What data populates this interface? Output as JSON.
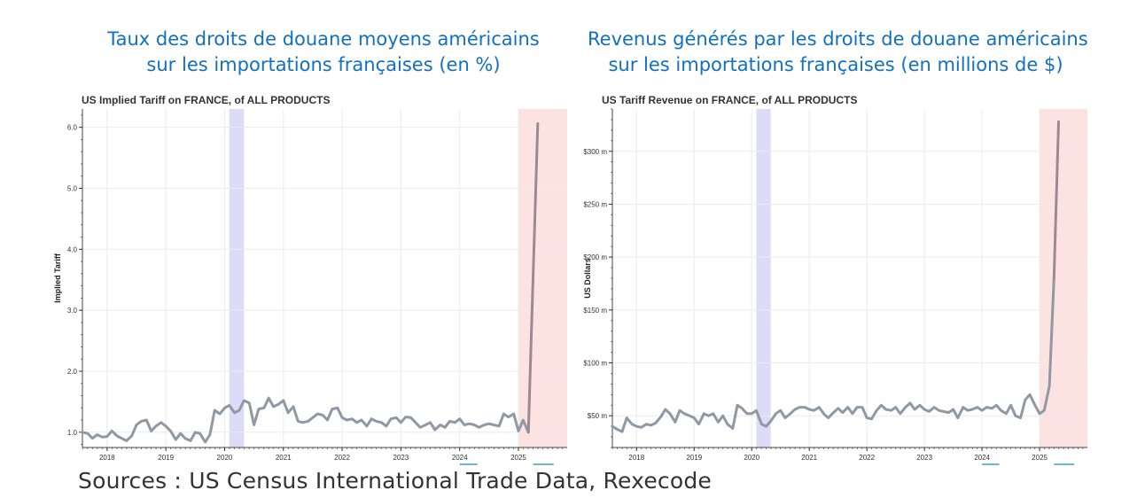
{
  "headings": {
    "left": [
      "Taux des droits de douane moyens américains",
      "sur les importations françaises (en %)"
    ],
    "right": [
      "Revenus générés par les droits de douane américains",
      "sur les importations françaises (en millions de $)"
    ]
  },
  "sources": "Sources : US Census  International Trade Data, Rexecode",
  "colors": {
    "heading": "#1270c0",
    "line": "#8f99a4",
    "line_recent": "#9a8a92",
    "shade_covid": "#dcdcf8",
    "shade_2025": "#fde2e2"
  },
  "chart_data": [
    {
      "type": "line",
      "title": "US Implied Tariff on FRANCE, of ALL PRODUCTS",
      "ylabel": "Implied Tariff",
      "xlim": [
        2017.58,
        2025.83
      ],
      "ylim": [
        0.75,
        6.3
      ],
      "yticks": [
        1.0,
        2.0,
        3.0,
        4.0,
        5.0,
        6.0
      ],
      "ytick_labels": [
        "1.0",
        "2.0",
        "3.0",
        "4.0",
        "5.0",
        "6.0"
      ],
      "xticks": [
        2018,
        2019,
        2020,
        2021,
        2022,
        2023,
        2024,
        2025
      ],
      "xtick_labels": [
        "2018",
        "2019",
        "2020",
        "2021",
        "2022",
        "2023",
        "2024",
        "2025"
      ],
      "shaded_regions": [
        [
          2020.08,
          2020.33
        ],
        [
          2025.0,
          2025.83
        ]
      ],
      "grid": true,
      "x": [
        2017.58,
        2017.67,
        2017.75,
        2017.83,
        2017.92,
        2018.0,
        2018.08,
        2018.17,
        2018.25,
        2018.33,
        2018.42,
        2018.5,
        2018.58,
        2018.67,
        2018.75,
        2018.83,
        2018.92,
        2019.0,
        2019.08,
        2019.17,
        2019.25,
        2019.33,
        2019.42,
        2019.5,
        2019.58,
        2019.67,
        2019.75,
        2019.83,
        2019.92,
        2020.0,
        2020.08,
        2020.17,
        2020.25,
        2020.33,
        2020.42,
        2020.5,
        2020.58,
        2020.67,
        2020.75,
        2020.83,
        2020.92,
        2021.0,
        2021.08,
        2021.17,
        2021.25,
        2021.33,
        2021.42,
        2021.5,
        2021.58,
        2021.67,
        2021.75,
        2021.83,
        2021.92,
        2022.0,
        2022.08,
        2022.17,
        2022.25,
        2022.33,
        2022.42,
        2022.5,
        2022.58,
        2022.67,
        2022.75,
        2022.83,
        2022.92,
        2023.0,
        2023.08,
        2023.17,
        2023.25,
        2023.33,
        2023.42,
        2023.5,
        2023.58,
        2023.67,
        2023.75,
        2023.83,
        2023.92,
        2024.0,
        2024.08,
        2024.17,
        2024.25,
        2024.33,
        2024.42,
        2024.5,
        2024.58,
        2024.67,
        2024.75,
        2024.83,
        2024.92,
        2025.0,
        2025.08,
        2025.17,
        2025.33
      ],
      "y": [
        1.0,
        0.98,
        0.9,
        0.96,
        0.92,
        0.93,
        1.02,
        0.94,
        0.9,
        0.86,
        0.94,
        1.12,
        1.18,
        1.2,
        1.02,
        1.1,
        1.16,
        1.1,
        1.02,
        0.88,
        0.98,
        0.9,
        0.86,
        1.0,
        0.98,
        0.84,
        0.96,
        1.36,
        1.3,
        1.4,
        1.44,
        1.32,
        1.36,
        1.52,
        1.48,
        1.12,
        1.38,
        1.4,
        1.56,
        1.42,
        1.46,
        1.52,
        1.32,
        1.42,
        1.18,
        1.16,
        1.18,
        1.24,
        1.3,
        1.28,
        1.2,
        1.38,
        1.4,
        1.24,
        1.2,
        1.22,
        1.16,
        1.2,
        1.1,
        1.22,
        1.18,
        1.16,
        1.1,
        1.22,
        1.24,
        1.16,
        1.25,
        1.24,
        1.16,
        1.08,
        1.12,
        1.16,
        1.04,
        1.12,
        1.08,
        1.18,
        1.16,
        1.22,
        1.12,
        1.14,
        1.12,
        1.08,
        1.12,
        1.14,
        1.12,
        1.1,
        1.3,
        1.25,
        1.3,
        1.02,
        1.2,
        1.0,
        6.06
      ]
    },
    {
      "type": "line",
      "title": "US Tariff Revenue on FRANCE, of ALL PRODUCTS",
      "ylabel": "US Dollars",
      "xlim": [
        2017.58,
        2025.83
      ],
      "ylim": [
        20,
        340
      ],
      "yticks": [
        50,
        100,
        150,
        200,
        250,
        300
      ],
      "ytick_labels": [
        "$50 m",
        "$100 m",
        "$150 m",
        "$200 m",
        "$250 m",
        "$300 m"
      ],
      "xticks": [
        2018,
        2019,
        2020,
        2021,
        2022,
        2023,
        2024,
        2025
      ],
      "xtick_labels": [
        "2018",
        "2019",
        "2020",
        "2021",
        "2022",
        "2023",
        "2024",
        "2025"
      ],
      "shaded_regions": [
        [
          2020.08,
          2020.33
        ],
        [
          2025.0,
          2025.83
        ]
      ],
      "grid": true,
      "x": [
        2017.58,
        2017.67,
        2017.75,
        2017.83,
        2017.92,
        2018.0,
        2018.08,
        2018.17,
        2018.25,
        2018.33,
        2018.42,
        2018.5,
        2018.58,
        2018.67,
        2018.75,
        2018.83,
        2018.92,
        2019.0,
        2019.08,
        2019.17,
        2019.25,
        2019.33,
        2019.42,
        2019.5,
        2019.58,
        2019.67,
        2019.75,
        2019.83,
        2019.92,
        2020.0,
        2020.08,
        2020.17,
        2020.25,
        2020.33,
        2020.42,
        2020.5,
        2020.58,
        2020.67,
        2020.75,
        2020.83,
        2020.92,
        2021.0,
        2021.08,
        2021.17,
        2021.25,
        2021.33,
        2021.42,
        2021.5,
        2021.58,
        2021.67,
        2021.75,
        2021.83,
        2021.92,
        2022.0,
        2022.08,
        2022.17,
        2022.25,
        2022.33,
        2022.42,
        2022.5,
        2022.58,
        2022.67,
        2022.75,
        2022.83,
        2022.92,
        2023.0,
        2023.08,
        2023.17,
        2023.25,
        2023.33,
        2023.42,
        2023.5,
        2023.58,
        2023.67,
        2023.75,
        2023.83,
        2023.92,
        2024.0,
        2024.08,
        2024.17,
        2024.25,
        2024.33,
        2024.42,
        2024.5,
        2024.58,
        2024.67,
        2024.75,
        2024.83,
        2024.92,
        2025.0,
        2025.08,
        2025.17,
        2025.25,
        2025.33
      ],
      "y": [
        40,
        37,
        35,
        48,
        42,
        40,
        39,
        42,
        41,
        43,
        49,
        56,
        52,
        44,
        55,
        52,
        50,
        48,
        42,
        52,
        50,
        52,
        44,
        50,
        42,
        38,
        60,
        57,
        52,
        52,
        55,
        42,
        40,
        45,
        52,
        55,
        48,
        52,
        56,
        58,
        58,
        56,
        55,
        58,
        52,
        48,
        53,
        57,
        53,
        58,
        52,
        58,
        58,
        48,
        47,
        55,
        60,
        56,
        55,
        58,
        52,
        58,
        62,
        56,
        60,
        56,
        54,
        58,
        55,
        54,
        53,
        56,
        48,
        58,
        55,
        56,
        58,
        55,
        58,
        57,
        60,
        55,
        52,
        60,
        50,
        48,
        65,
        70,
        60,
        52,
        55,
        78,
        180,
        328
      ]
    }
  ]
}
